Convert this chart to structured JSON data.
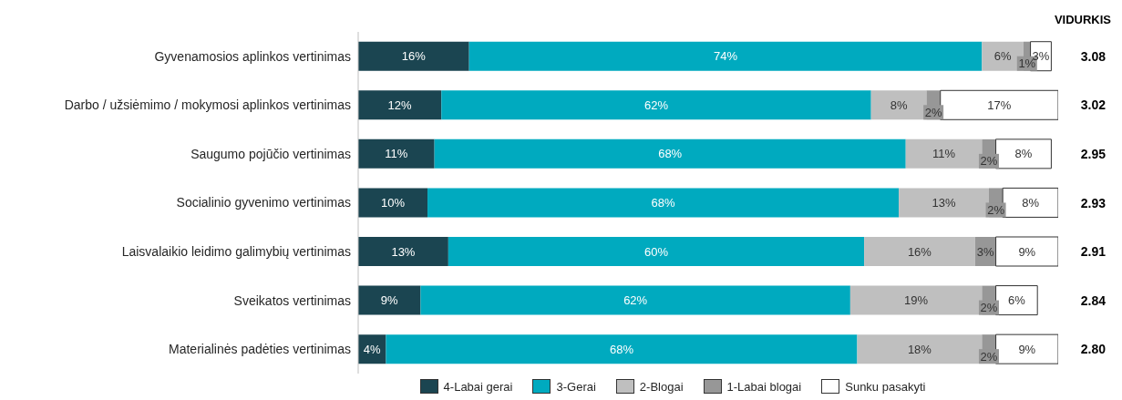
{
  "chart_data": {
    "type": "bar",
    "orientation": "horizontal",
    "stacked": true,
    "legend": "bottom",
    "categories": [
      "Gyvenamosios aplinkos vertinimas",
      "Darbo / užsiėmimo / mokymosi aplinkos vertinimas",
      "Saugumo pojūčio vertinimas",
      "Socialinio gyvenimo vertinimas",
      "Laisvalaikio leidimo galimybių vertinimas",
      "Sveikatos vertinimas",
      "Materialinės padėties vertinimas"
    ],
    "series": [
      {
        "name": "4-Labai gerai",
        "color": "#1b4551",
        "values": [
          16,
          12,
          11,
          10,
          13,
          9,
          4
        ],
        "value_labels": [
          "16%",
          "12%",
          "11%",
          "10%",
          "13%",
          "9%",
          "4%"
        ]
      },
      {
        "name": "3-Gerai",
        "color": "#00aabf",
        "values": [
          74,
          62,
          68,
          68,
          60,
          62,
          68
        ],
        "value_labels": [
          "74%",
          "62%",
          "68%",
          "68%",
          "60%",
          "62%",
          "68%"
        ]
      },
      {
        "name": "2-Blogai",
        "color": "#bfbfbf",
        "values": [
          6,
          8,
          11,
          13,
          16,
          19,
          18
        ],
        "value_labels": [
          "6%",
          "8%",
          "11%",
          "13%",
          "16%",
          "19%",
          "18%"
        ]
      },
      {
        "name": "1-Labai blogai",
        "color": "#979797",
        "values": [
          1,
          2,
          2,
          2,
          3,
          2,
          2
        ],
        "value_labels": [
          "1%",
          "2%",
          "2%",
          "2%",
          "3%",
          "2%",
          "2%"
        ]
      },
      {
        "name": "Sunku pasakyti",
        "color": "#ffffff",
        "values": [
          3,
          17,
          8,
          8,
          9,
          6,
          9
        ],
        "value_labels": [
          "3%",
          "17%",
          "8%",
          "8%",
          "9%",
          "6%",
          "9%"
        ]
      }
    ],
    "annotations": [
      "VIDURKIS",
      "3.08",
      "3.02",
      "2.95",
      "2.93",
      "2.91",
      "2.84",
      "2.80"
    ]
  }
}
